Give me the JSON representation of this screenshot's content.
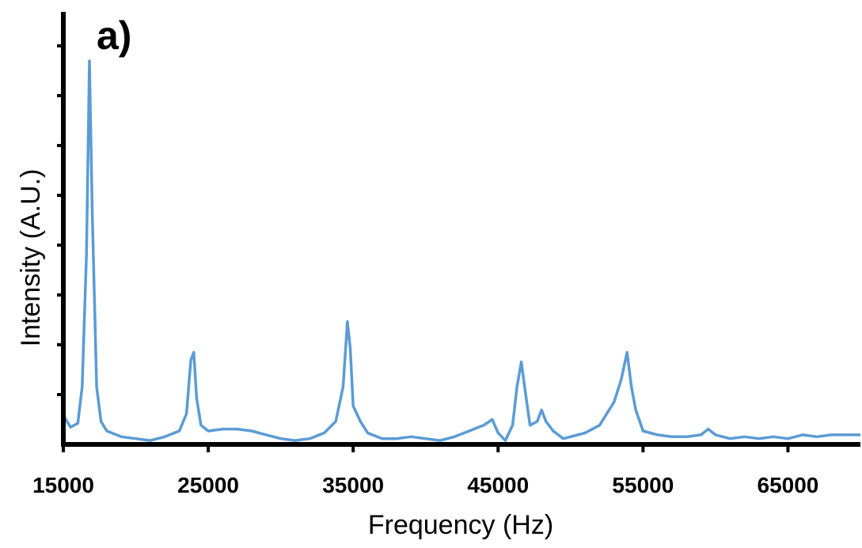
{
  "panel_label": "a)",
  "chart_data": {
    "type": "line",
    "xlabel": "Frequency (Hz)",
    "ylabel": "Intensity (A.U.)",
    "xlim": [
      15000,
      70000
    ],
    "ylim": [
      0,
      100
    ],
    "x_ticks": [
      15000,
      25000,
      35000,
      45000,
      55000,
      65000
    ],
    "y_tick_count": 8,
    "y_tick_labels_shown": false,
    "grid": false,
    "line_color": "#5B9BD5",
    "series": [
      {
        "x": [
          15000,
          15500,
          16000,
          16300,
          16600,
          16800,
          17000,
          17300,
          17600,
          18000,
          19000,
          20000,
          21000,
          22000,
          23000,
          23500,
          23800,
          24000,
          24200,
          24500,
          25000,
          26000,
          27000,
          28000,
          29000,
          30000,
          31000,
          32000,
          33000,
          33800,
          34300,
          34600,
          34800,
          35000,
          35500,
          36000,
          37000,
          38000,
          39000,
          40000,
          41000,
          42000,
          43000,
          44000,
          44600,
          45000,
          45500,
          46000,
          46300,
          46600,
          46900,
          47200,
          47700,
          48000,
          48300,
          48800,
          49500,
          50000,
          51000,
          52000,
          53000,
          53500,
          53900,
          54200,
          54500,
          55000,
          56000,
          57000,
          58000,
          59000,
          59500,
          60000,
          61000,
          62000,
          63000,
          64000,
          65000,
          66000,
          67000,
          68000,
          69000,
          70000
        ],
        "y": [
          7.5,
          4.5,
          5.5,
          15,
          50,
          100,
          60,
          15,
          6,
          3.5,
          2,
          1.5,
          1,
          2,
          3.5,
          8,
          22,
          24,
          12,
          5,
          3.5,
          4,
          4,
          3.5,
          2.5,
          1.5,
          1,
          1.5,
          3,
          6,
          15,
          32,
          25,
          10,
          6,
          3,
          1.5,
          1.5,
          2,
          1.5,
          1,
          2,
          3.5,
          5,
          6.5,
          3,
          1,
          5,
          15,
          21.5,
          13,
          5,
          6,
          9,
          6,
          3.5,
          1.5,
          2,
          3,
          5,
          11,
          17,
          24,
          15,
          9,
          3.5,
          2.5,
          2,
          2,
          2.5,
          4,
          2.5,
          1.5,
          2,
          1.5,
          2,
          1.5,
          2.5,
          2,
          2.5,
          2.5,
          2.5
        ]
      }
    ]
  }
}
